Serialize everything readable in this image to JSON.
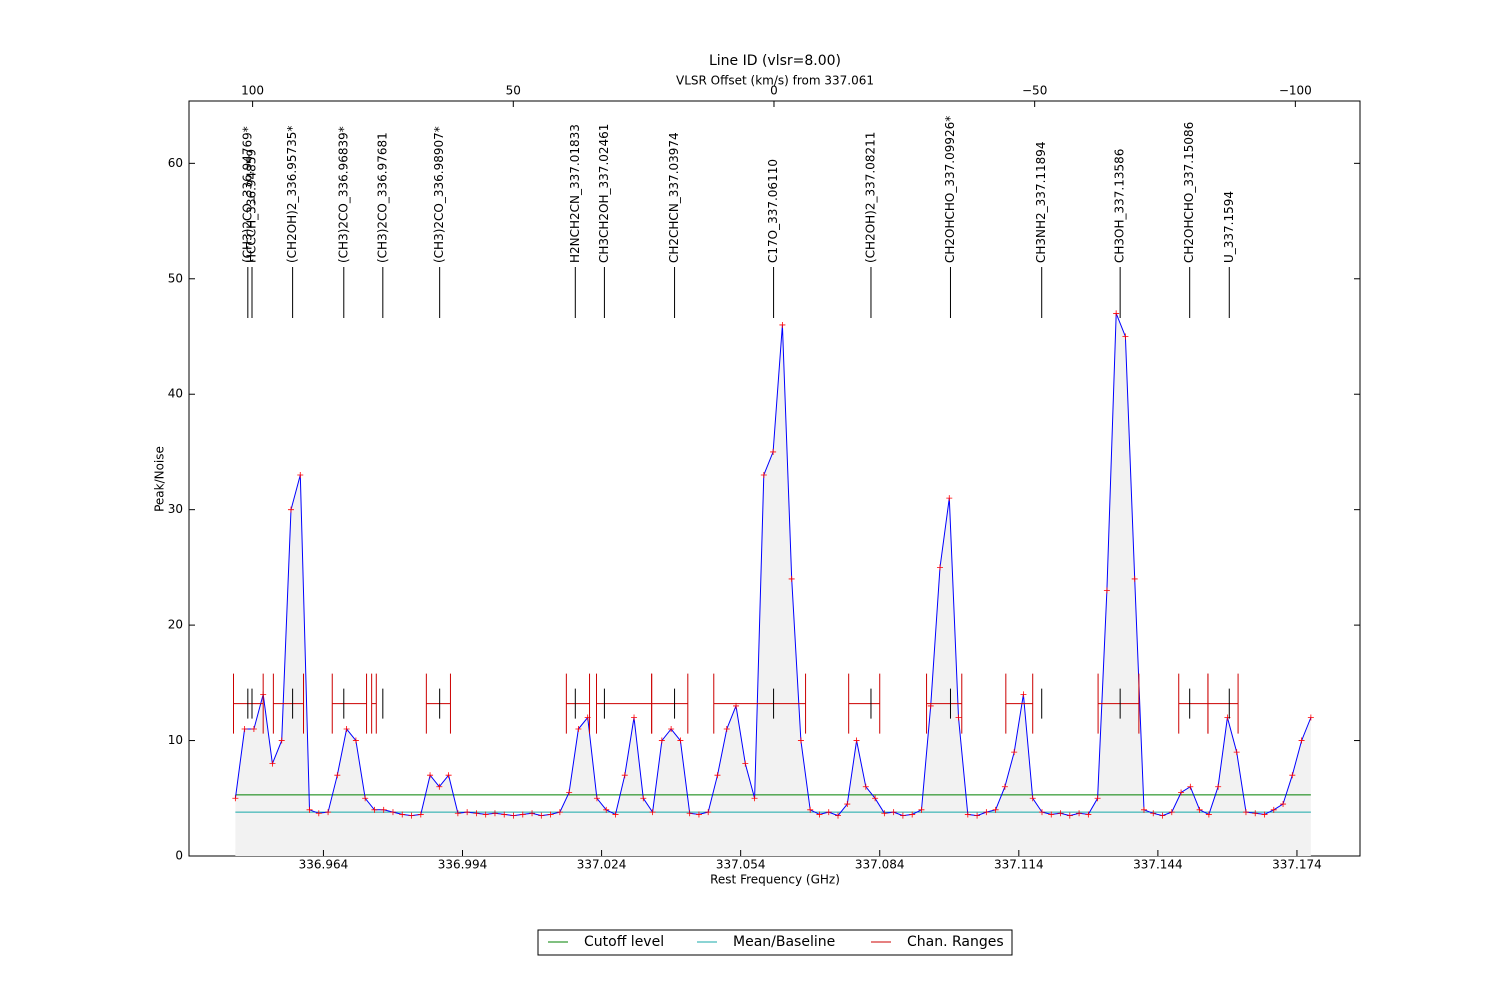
{
  "chart_data": {
    "type": "line",
    "title": "Line ID (vlsr=8.00)",
    "x2_label": "VLSR Offset (km/s) from 337.061",
    "x2_color": "#ff0000",
    "xlabel": "Rest Frequency (GHz)",
    "ylabel": "Peak/Noise",
    "xlim": [
      336.935,
      337.1876
    ],
    "xticks": [
      336.964,
      336.994,
      337.024,
      337.054,
      337.084,
      337.114,
      337.144,
      337.174
    ],
    "x2lim": [
      112.2,
      -112.4
    ],
    "x2ticks": [
      100,
      50,
      0,
      {
        "value": -50,
        "label": "−50"
      },
      {
        "value": -100,
        "label": "−100"
      }
    ],
    "ylim": [
      0,
      65.4
    ],
    "yticks": [
      0,
      10,
      20,
      30,
      40,
      50,
      60
    ],
    "spectrum": {
      "color": "#0000ff",
      "marker_color": "#ff0000",
      "x": [
        336.945,
        336.947,
        336.949,
        336.951,
        336.953,
        336.955,
        336.957,
        336.959,
        336.961,
        336.963,
        336.965,
        336.967,
        336.969,
        336.971,
        336.973,
        336.975,
        336.977,
        336.979,
        336.981,
        336.983,
        336.985,
        336.987,
        336.989,
        336.991,
        336.993,
        336.995,
        336.997,
        336.999,
        337.001,
        337.003,
        337.005,
        337.007,
        337.009,
        337.011,
        337.013,
        337.015,
        337.017,
        337.019,
        337.021,
        337.023,
        337.025,
        337.027,
        337.029,
        337.031,
        337.033,
        337.035,
        337.037,
        337.039,
        337.041,
        337.043,
        337.045,
        337.047,
        337.049,
        337.051,
        337.053,
        337.055,
        337.057,
        337.059,
        337.061,
        337.063,
        337.065,
        337.067,
        337.069,
        337.071,
        337.073,
        337.075,
        337.077,
        337.079,
        337.081,
        337.083,
        337.085,
        337.087,
        337.089,
        337.091,
        337.093,
        337.095,
        337.097,
        337.099,
        337.101,
        337.103,
        337.105,
        337.107,
        337.109,
        337.111,
        337.113,
        337.115,
        337.117,
        337.119,
        337.121,
        337.123,
        337.125,
        337.127,
        337.129,
        337.131,
        337.133,
        337.135,
        337.137,
        337.139,
        337.141,
        337.143,
        337.145,
        337.147,
        337.149,
        337.151,
        337.153,
        337.155,
        337.157,
        337.159,
        337.161,
        337.163,
        337.165,
        337.167,
        337.169,
        337.171,
        337.173,
        337.175,
        337.177
      ],
      "values": [
        5,
        11,
        11,
        14,
        8,
        10,
        30,
        33,
        4,
        3.7,
        3.8,
        7,
        11,
        10,
        5,
        4,
        4,
        3.8,
        3.6,
        3.5,
        3.6,
        7,
        6,
        7,
        3.7,
        3.8,
        3.7,
        3.6,
        3.7,
        3.6,
        3.5,
        3.6,
        3.7,
        3.5,
        3.6,
        3.8,
        5.5,
        11,
        12,
        5,
        4,
        3.6,
        7,
        12,
        5,
        3.8,
        10,
        11,
        10,
        3.7,
        3.6,
        3.8,
        7,
        11,
        13,
        8,
        5,
        33,
        35,
        46,
        24,
        10,
        4,
        3.6,
        3.8,
        3.5,
        4.5,
        10,
        6,
        5,
        3.7,
        3.8,
        3.5,
        3.6,
        4,
        13,
        25,
        31,
        12,
        3.6,
        3.5,
        3.8,
        4,
        6,
        9,
        14,
        5,
        3.8,
        3.6,
        3.7,
        3.5,
        3.7,
        3.6,
        5,
        23,
        47,
        45,
        24,
        4,
        3.7,
        3.5,
        3.8,
        5.5,
        6,
        4,
        3.6,
        6,
        12,
        9,
        3.8,
        3.7,
        3.6,
        4,
        4.5,
        7,
        10,
        12
      ]
    },
    "levels": [
      {
        "name": "Cutoff level",
        "color": "#008000",
        "value": 5.3
      },
      {
        "name": "Mean/Baseline",
        "color": "#17a8a8",
        "value": 3.8
      }
    ],
    "chan_ranges": {
      "name": "Chan. Ranges",
      "color": "#cc0000",
      "level": 13.2,
      "ranges": [
        [
          336.9446,
          336.951
        ],
        [
          336.9532,
          336.9597
        ],
        [
          336.9659,
          336.9733
        ],
        [
          336.9744,
          336.9754
        ],
        [
          336.9862,
          336.9914
        ],
        [
          337.0164,
          337.0214
        ],
        [
          337.0229,
          337.0348
        ],
        [
          337.0348,
          337.0426
        ],
        [
          337.0482,
          337.068
        ],
        [
          337.0773,
          337.084
        ],
        [
          337.0941,
          337.1017
        ],
        [
          337.1112,
          337.117
        ],
        [
          337.1311,
          337.1399
        ],
        [
          337.1485,
          337.1548
        ],
        [
          337.1548,
          337.1613
        ]
      ]
    },
    "line_ids": [
      {
        "label": "(CH3)2CO_336.94769*",
        "freq": 336.94769
      },
      {
        "label": "HCCCH_336.94859",
        "freq": 336.94859
      },
      {
        "label": "(CH2OH)2_336.95735*",
        "freq": 336.95735
      },
      {
        "label": "(CH3)2CO_336.96839*",
        "freq": 336.96839
      },
      {
        "label": "(CH3)2CO_336.97681",
        "freq": 336.97681
      },
      {
        "label": "(CH3)2CO_336.98907*",
        "freq": 336.98907
      },
      {
        "label": "H2NCH2CN_337.01833",
        "freq": 337.01833
      },
      {
        "label": "CH3CH2OH_337.02461",
        "freq": 337.02461
      },
      {
        "label": "CH2CHCN_337.03974",
        "freq": 337.03974
      },
      {
        "label": "C17O_337.06110",
        "freq": 337.0611
      },
      {
        "label": "(CH2OH)2_337.08211",
        "freq": 337.08211
      },
      {
        "label": "CH2OHCHO_337.09926*",
        "freq": 337.09926
      },
      {
        "label": "CH3NH2_337.11894",
        "freq": 337.11894
      },
      {
        "label": "CH3OH_337.13586",
        "freq": 337.13586
      },
      {
        "label": "CH2OHCHO_337.15086",
        "freq": 337.15086
      },
      {
        "label": "U_337.1594",
        "freq": 337.1594
      }
    ]
  }
}
